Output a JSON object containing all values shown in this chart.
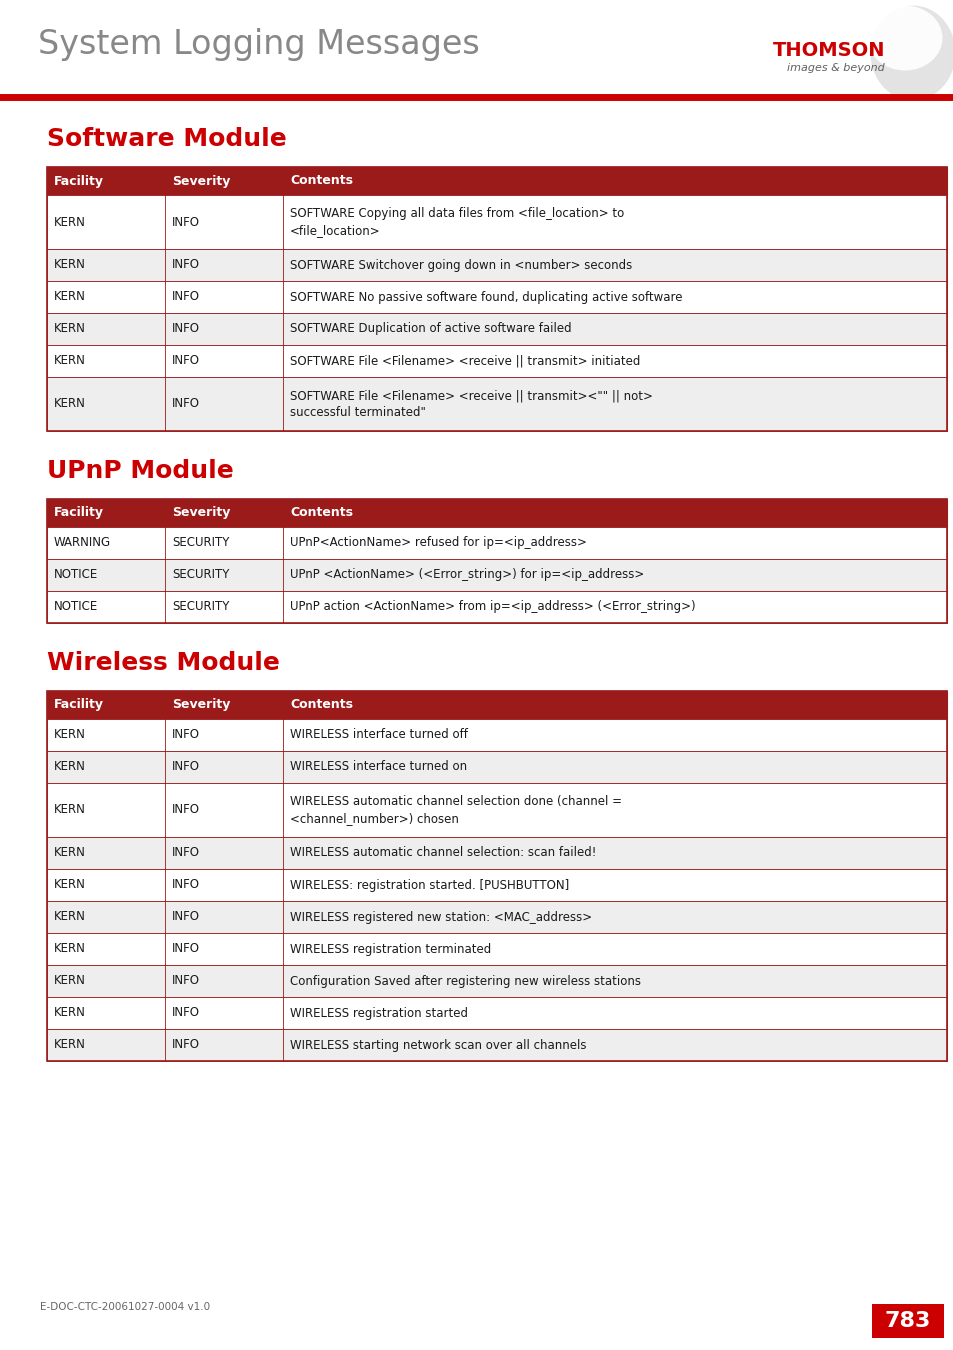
{
  "page_title": "System Logging Messages",
  "header_line_color": "#cc0000",
  "background_color": "#ffffff",
  "section1_title": "Software Module",
  "section2_title": "UPnP Module",
  "section3_title": "Wireless Module",
  "section_title_color": "#cc0000",
  "table_header_bg": "#9b1a1a",
  "table_header_text_color": "#ffffff",
  "table_row_alt_color": "#eeeeee",
  "table_row_color": "#ffffff",
  "table_border_color": "#9b1a1a",
  "table_text_color": "#1a1a1a",
  "table_headers": [
    "Facility",
    "Severity",
    "Contents"
  ],
  "software_rows": [
    [
      "KERN",
      "INFO",
      "SOFTWARE Copying all data files from <file_location> to\n<file_location>"
    ],
    [
      "KERN",
      "INFO",
      "SOFTWARE Switchover going down in <number> seconds"
    ],
    [
      "KERN",
      "INFO",
      "SOFTWARE No passive software found, duplicating active software"
    ],
    [
      "KERN",
      "INFO",
      "SOFTWARE Duplication of active software failed"
    ],
    [
      "KERN",
      "INFO",
      "SOFTWARE File <Filename> <receive || transmit> initiated"
    ],
    [
      "KERN",
      "INFO",
      "SOFTWARE File <Filename> <receive || transmit><\"\" || not>\nsuccessful terminated\""
    ]
  ],
  "upnp_rows": [
    [
      "WARNING",
      "SECURITY",
      "UPnP<ActionName> refused for ip=<ip_address>"
    ],
    [
      "NOTICE",
      "SECURITY",
      "UPnP <ActionName> (<Error_string>) for ip=<ip_address>"
    ],
    [
      "NOTICE",
      "SECURITY",
      "UPnP action <ActionName> from ip=<ip_address> (<Error_string>)"
    ]
  ],
  "wireless_rows": [
    [
      "KERN",
      "INFO",
      "WIRELESS interface turned off"
    ],
    [
      "KERN",
      "INFO",
      "WIRELESS interface turned on"
    ],
    [
      "KERN",
      "INFO",
      "WIRELESS automatic channel selection done (channel =\n<channel_number>) chosen"
    ],
    [
      "KERN",
      "INFO",
      "WIRELESS automatic channel selection: scan failed!"
    ],
    [
      "KERN",
      "INFO",
      "WIRELESS: registration started. [PUSHBUTTON]"
    ],
    [
      "KERN",
      "INFO",
      "WIRELESS registered new station: <MAC_address>"
    ],
    [
      "KERN",
      "INFO",
      "WIRELESS registration terminated"
    ],
    [
      "KERN",
      "INFO",
      "Configuration Saved after registering new wireless stations"
    ],
    [
      "KERN",
      "INFO",
      "WIRELESS registration started"
    ],
    [
      "KERN",
      "INFO",
      "WIRELESS starting network scan over all channels"
    ]
  ],
  "footer_text": "E-DOC-CTC-20061027-0004 v1.0",
  "page_number": "783",
  "page_number_bg": "#cc0000"
}
